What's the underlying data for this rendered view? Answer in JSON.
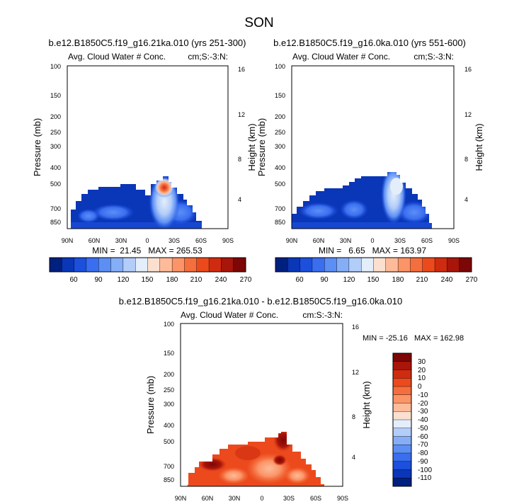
{
  "title": "SON",
  "chart_data": [
    {
      "type": "heatmap",
      "title": "b.e12.B1850C5.f19_g16.21ka.010 (yrs 251-300)",
      "subtitle_left": "Avg. Cloud Water # Conc.",
      "subtitle_right": "cm;S:-3:N:",
      "xlabel": "",
      "ylabel": "Pressure (mb)",
      "ylabel_right": "Height (km)",
      "x_ticks": [
        "90N",
        "60N",
        "30N",
        "0",
        "30S",
        "60S",
        "90S"
      ],
      "y_ticks": [
        "100",
        "150",
        "200",
        "250",
        "300",
        "400",
        "500",
        "700",
        "850"
      ],
      "y_ticks_right": [
        "16",
        "12",
        "8",
        "4"
      ],
      "xlim": [
        90,
        -90
      ],
      "ylim": [
        100,
        900
      ],
      "y_scale": "log",
      "stats": "MIN =  21.45   MAX = 265.53",
      "colorbar_labels": [
        "60",
        "90",
        "120",
        "150",
        "180",
        "210",
        "240",
        "270"
      ],
      "colorbar_colors": [
        "#00207f",
        "#0a36b8",
        "#1b4fdc",
        "#3a6ef0",
        "#5c8ff4",
        "#86aef7",
        "#b3cdf9",
        "#e4eefb",
        "#fbe0cf",
        "#fdbb9a",
        "#fb9466",
        "#f56e3d",
        "#ec4a1d",
        "#cf2b10",
        "#a8150a",
        "#7d0606"
      ]
    },
    {
      "type": "heatmap",
      "title": "b.e12.B1850C5.f19_g16.0ka.010 (yrs 551-600)",
      "subtitle_left": "Avg. Cloud Water # Conc.",
      "subtitle_right": "cm;S:-3:N:",
      "xlabel": "",
      "ylabel": "Pressure (mb)",
      "ylabel_right": "Height (km)",
      "x_ticks": [
        "90N",
        "60N",
        "30N",
        "0",
        "30S",
        "60S",
        "90S"
      ],
      "y_ticks": [
        "100",
        "150",
        "200",
        "250",
        "300",
        "400",
        "500",
        "700",
        "850"
      ],
      "y_ticks_right": [
        "16",
        "12",
        "8",
        "4"
      ],
      "xlim": [
        90,
        -90
      ],
      "ylim": [
        100,
        900
      ],
      "y_scale": "log",
      "stats": "MIN =   6.65   MAX = 163.97",
      "colorbar_labels": [
        "60",
        "90",
        "120",
        "150",
        "180",
        "210",
        "240",
        "270"
      ],
      "colorbar_colors": [
        "#00207f",
        "#0a36b8",
        "#1b4fdc",
        "#3a6ef0",
        "#5c8ff4",
        "#86aef7",
        "#b3cdf9",
        "#e4eefb",
        "#fbe0cf",
        "#fdbb9a",
        "#fb9466",
        "#f56e3d",
        "#ec4a1d",
        "#cf2b10",
        "#a8150a",
        "#7d0606"
      ]
    },
    {
      "type": "heatmap",
      "title": "b.e12.B1850C5.f19_g16.21ka.010 - b.e12.B1850C5.f19_g16.0ka.010",
      "subtitle_left": "Avg. Cloud Water # Conc.",
      "subtitle_right": "cm:S:-3:N:",
      "xlabel": "",
      "ylabel": "Pressure (mb)",
      "ylabel_right": "Height (km)",
      "x_ticks": [
        "90N",
        "60N",
        "30N",
        "0",
        "30S",
        "60S",
        "90S"
      ],
      "y_ticks": [
        "100",
        "150",
        "200",
        "250",
        "300",
        "400",
        "500",
        "700",
        "850"
      ],
      "y_ticks_right": [
        "16",
        "12",
        "8",
        "4"
      ],
      "xlim": [
        90,
        -90
      ],
      "ylim": [
        100,
        900
      ],
      "y_scale": "log",
      "stats": "MIN = -25.16   MAX = 162.98",
      "colorbar_labels": [
        "30",
        "20",
        "10",
        "0",
        "-10",
        "-20",
        "-30",
        "-40",
        "-50",
        "-60",
        "-70",
        "-80",
        "-90",
        "-100",
        "-110"
      ],
      "colorbar_colors": [
        "#7d0606",
        "#a8150a",
        "#cf2b10",
        "#ec4a1d",
        "#f56e3d",
        "#fb9466",
        "#fdbb9a",
        "#fbe0cf",
        "#e4eefb",
        "#b3cdf9",
        "#86aef7",
        "#5c8ff4",
        "#3a6ef0",
        "#1b4fdc",
        "#0a36b8",
        "#00207f"
      ]
    }
  ]
}
